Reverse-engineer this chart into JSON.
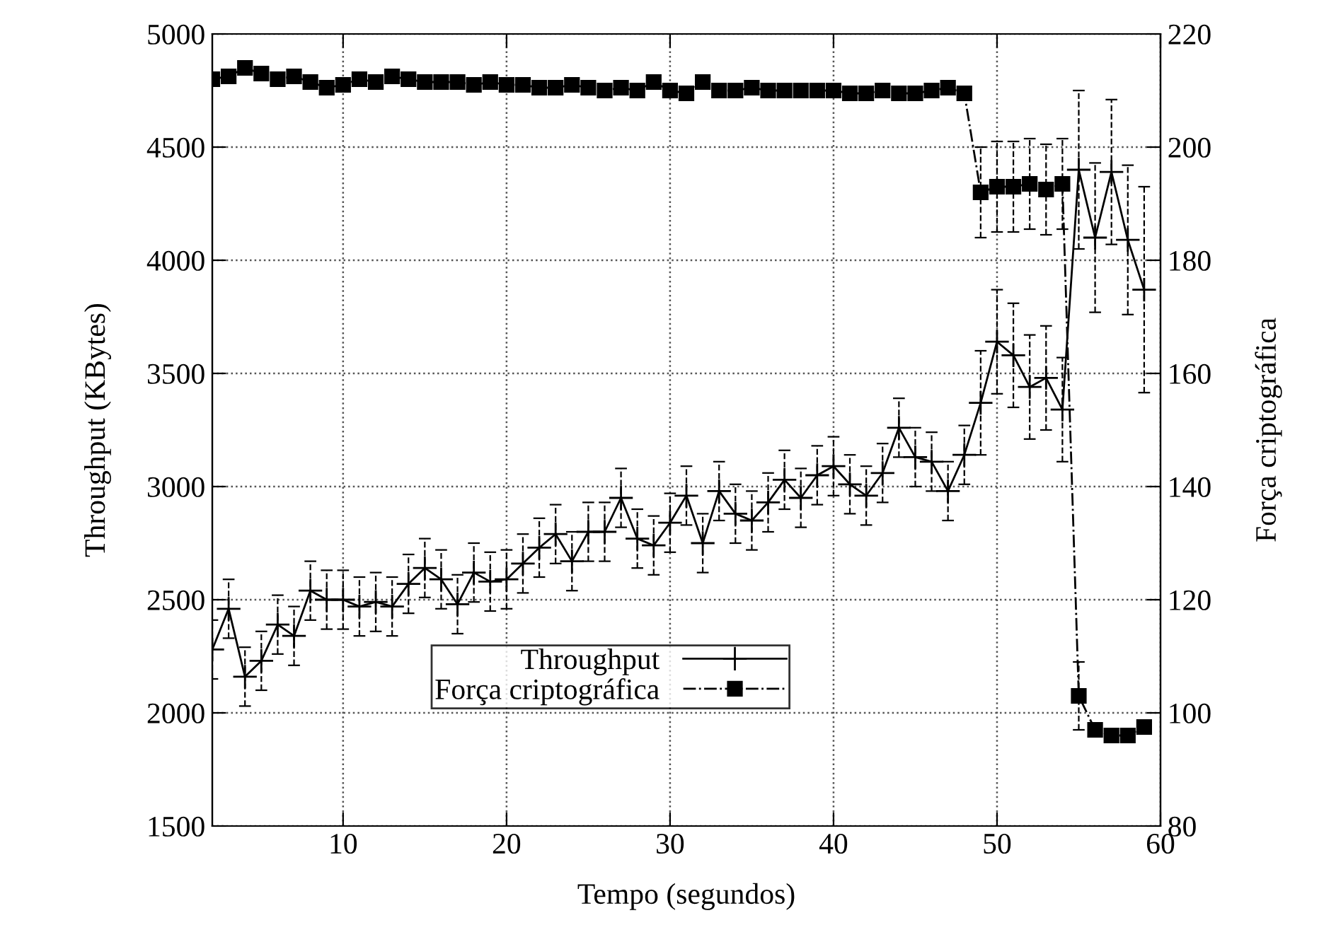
{
  "chart_data": {
    "type": "line",
    "xlabel": "Tempo (segundos)",
    "ylabel": "Throughput (KBytes)",
    "y2label": "Força criptográfica",
    "x": [
      2,
      3,
      4,
      5,
      6,
      7,
      8,
      9,
      10,
      11,
      12,
      13,
      14,
      15,
      16,
      17,
      18,
      19,
      20,
      21,
      22,
      23,
      24,
      25,
      26,
      27,
      28,
      29,
      30,
      31,
      32,
      33,
      34,
      35,
      36,
      37,
      38,
      39,
      40,
      41,
      42,
      43,
      44,
      45,
      46,
      47,
      48,
      49,
      50,
      51,
      52,
      53,
      54,
      55,
      56,
      57,
      58,
      59
    ],
    "series": [
      {
        "name": "Throughput",
        "color": "#000000",
        "marker": "cross",
        "line_style": "solid",
        "values": [
          2280,
          2460,
          2160,
          2230,
          2390,
          2340,
          2540,
          2500,
          2500,
          2470,
          2490,
          2470,
          2570,
          2640,
          2590,
          2480,
          2620,
          2580,
          2590,
          2660,
          2730,
          2790,
          2670,
          2800,
          2800,
          2950,
          2770,
          2740,
          2840,
          2960,
          2750,
          2980,
          2880,
          2850,
          2930,
          3030,
          2950,
          3050,
          3090,
          3010,
          2960,
          3060,
          3260,
          3130,
          3110,
          2980,
          3140,
          3370,
          3640,
          3580,
          3440,
          3480,
          3340,
          4400,
          4100,
          4390,
          4090,
          3870
        ],
        "errors": [
          130,
          130,
          130,
          130,
          130,
          130,
          130,
          130,
          130,
          130,
          130,
          130,
          130,
          130,
          130,
          130,
          130,
          130,
          130,
          130,
          130,
          130,
          130,
          130,
          130,
          130,
          130,
          130,
          130,
          130,
          130,
          130,
          130,
          130,
          130,
          130,
          130,
          130,
          130,
          130,
          130,
          130,
          130,
          130,
          130,
          130,
          130,
          230,
          230,
          230,
          230,
          230,
          230,
          350,
          330,
          320,
          330,
          455
        ]
      },
      {
        "name": "Força criptográfica",
        "color": "#000000",
        "marker": "square",
        "line_style": "dashed",
        "axis": "y2",
        "values": [
          212,
          212.5,
          214,
          213,
          212,
          212.5,
          211.5,
          210.5,
          211,
          212,
          211.5,
          212.5,
          212,
          211.5,
          211.5,
          211.5,
          211,
          211.5,
          211,
          211,
          210.5,
          210.5,
          211,
          210.5,
          210,
          210.5,
          210,
          211.5,
          210,
          209.5,
          211.5,
          210,
          210,
          210.5,
          210,
          210,
          210,
          210,
          210,
          209.5,
          209.5,
          210,
          209.5,
          209.5,
          210,
          210.5,
          209.5,
          192,
          193,
          193,
          193.5,
          192.5,
          193.5,
          103,
          97,
          96,
          96,
          97.5
        ],
        "errors": [
          null,
          null,
          null,
          null,
          null,
          null,
          null,
          null,
          null,
          null,
          null,
          null,
          null,
          null,
          null,
          null,
          null,
          null,
          null,
          null,
          null,
          null,
          null,
          null,
          null,
          null,
          null,
          null,
          null,
          null,
          null,
          null,
          null,
          null,
          null,
          null,
          null,
          null,
          null,
          null,
          null,
          null,
          null,
          null,
          null,
          null,
          null,
          8,
          8,
          8,
          8,
          8,
          8,
          6,
          null,
          null,
          null,
          null
        ]
      }
    ],
    "xlim": [
      2,
      60
    ],
    "xticks": [
      10,
      20,
      30,
      40,
      50,
      60
    ],
    "ylim": [
      1500,
      5000
    ],
    "yticks": [
      1500,
      2000,
      2500,
      3000,
      3500,
      4000,
      4500,
      5000
    ],
    "y2lim": [
      80,
      220
    ],
    "y2ticks": [
      80,
      100,
      120,
      140,
      160,
      180,
      200,
      220
    ],
    "grid": true,
    "legend": "bottom"
  }
}
